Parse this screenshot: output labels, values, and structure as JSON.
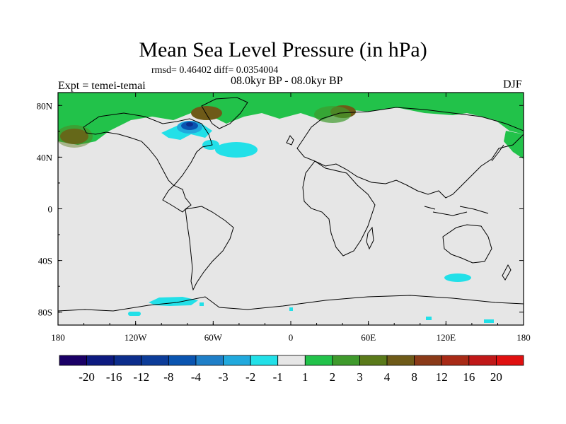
{
  "title": "Mean Sea Level Pressure (in hPa)",
  "stats": "rmsd= 0.46402 diff= 0.0354004",
  "period": "08.0kyr BP - 08.0kyr BP",
  "experiment": "Expt = temei-temai",
  "season": "DJF",
  "axes": {
    "lon_ticks": [
      "180",
      "120W",
      "60W",
      "0",
      "60E",
      "120E",
      "180"
    ],
    "lat_ticks": [
      "80N",
      "40N",
      "0",
      "40S",
      "80S"
    ],
    "lon_range": [
      -180,
      180
    ],
    "lat_range": [
      -90,
      90
    ]
  },
  "colorbar": {
    "labels": [
      "-20",
      "-16",
      "-12",
      "-8",
      "-4",
      "-3",
      "-2",
      "-1",
      "1",
      "2",
      "3",
      "4",
      "8",
      "12",
      "16",
      "20"
    ],
    "colors": [
      "#1a0066",
      "#0d1a80",
      "#0c2d8c",
      "#0c3c99",
      "#0a54b0",
      "#1f7fc8",
      "#21a9dd",
      "#22e0e8",
      "#e6e6e6",
      "#22c24a",
      "#3f9a2c",
      "#5a7a1a",
      "#6e5a18",
      "#8a3a18",
      "#a82a16",
      "#c01818",
      "#e01010"
    ]
  },
  "chart_data": {
    "type": "heatmap",
    "variable": "Mean Sea Level Pressure anomaly",
    "units": "hPa",
    "projection": "cylindrical equidistant",
    "title": "Mean Sea Level Pressure (in hPa)",
    "levels": [
      -20,
      -16,
      -12,
      -8,
      -4,
      -3,
      -2,
      -1,
      1,
      2,
      3,
      4,
      8,
      12,
      16,
      20
    ],
    "background_band": "-1 to 1",
    "regions": [
      {
        "name": "arctic-positive",
        "band": "1 to 2",
        "lon": [
          -180,
          180
        ],
        "lat": [
          68,
          90
        ]
      },
      {
        "name": "north-pacific-positive",
        "band": "1 to 2",
        "lon": [
          -180,
          -152
        ],
        "lat": [
          40,
          75
        ]
      },
      {
        "name": "east-siberia-positive",
        "band": "1 to 2",
        "lon": [
          160,
          180
        ],
        "lat": [
          45,
          72
        ]
      },
      {
        "name": "north-pacific-core",
        "band": "3 to 4",
        "lon": [
          -175,
          -160
        ],
        "lat": [
          53,
          60
        ]
      },
      {
        "name": "greenland-core",
        "band": "3 to 4",
        "lon": [
          -70,
          -55
        ],
        "lat": [
          68,
          78
        ]
      },
      {
        "name": "scandinavia-core",
        "band": "3 to 4",
        "lon": [
          20,
          40
        ],
        "lat": [
          70,
          77
        ]
      },
      {
        "name": "hudson-bay-negative",
        "band": "-8 to -4",
        "lon": [
          -90,
          -75
        ],
        "lat": [
          57,
          66
        ]
      },
      {
        "name": "canada-negative",
        "band": "-3 to -1",
        "lon": [
          -105,
          -60
        ],
        "lat": [
          50,
          70
        ]
      },
      {
        "name": "north-atlantic-negative",
        "band": "-2 to -1",
        "lon": [
          -50,
          -30
        ],
        "lat": [
          38,
          50
        ]
      },
      {
        "name": "southern-indian-negative",
        "band": "-2 to -1",
        "lon": [
          120,
          140
        ],
        "lat": [
          -54,
          -50
        ]
      },
      {
        "name": "antarctic-negative",
        "band": "-2 to -1",
        "lon": [
          -110,
          -60
        ],
        "lat": [
          -78,
          -72
        ]
      }
    ]
  }
}
